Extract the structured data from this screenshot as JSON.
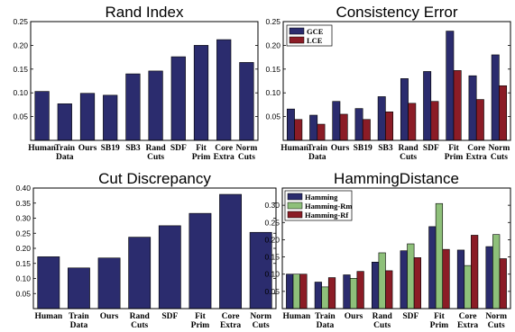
{
  "chart_data": [
    {
      "type": "bar",
      "title": "Rand Index",
      "categories": [
        [
          "Human"
        ],
        [
          "Train",
          "Data"
        ],
        [
          "Ours"
        ],
        [
          "SB19"
        ],
        [
          "SB3"
        ],
        [
          "Rand",
          "Cuts"
        ],
        [
          "SDF"
        ],
        [
          "Fit",
          "Prim"
        ],
        [
          "Core",
          "Extra"
        ],
        [
          "Norm",
          "Cuts"
        ]
      ],
      "series": [
        {
          "values": [
            0.103,
            0.077,
            0.099,
            0.095,
            0.14,
            0.146,
            0.176,
            0.2,
            0.212,
            0.164
          ],
          "color": "#2b2c6e"
        }
      ],
      "ylim": [
        0,
        0.25
      ],
      "yticks": [
        "0.05",
        "0.10",
        "0.15",
        "0.20",
        "0.25"
      ],
      "ytick_values": [
        0.05,
        0.1,
        0.15,
        0.2,
        0.25
      ],
      "grid": false,
      "legend": false
    },
    {
      "type": "bar",
      "title": "Consistency Error",
      "categories": [
        [
          "Human"
        ],
        [
          "Train",
          "Data"
        ],
        [
          "Ours"
        ],
        [
          "SB19"
        ],
        [
          "SB3"
        ],
        [
          "Rand",
          "Cuts"
        ],
        [
          "SDF"
        ],
        [
          "Fit",
          "Prim"
        ],
        [
          "Core",
          "Extra"
        ],
        [
          "Norm",
          "Cuts"
        ]
      ],
      "series": [
        {
          "name": "GCE",
          "values": [
            0.066,
            0.053,
            0.082,
            0.067,
            0.092,
            0.13,
            0.145,
            0.23,
            0.136,
            0.18
          ],
          "color": "#2b2c6e"
        },
        {
          "name": "LCE",
          "values": [
            0.044,
            0.034,
            0.055,
            0.044,
            0.06,
            0.078,
            0.082,
            0.147,
            0.086,
            0.115
          ],
          "color": "#8b1c26"
        }
      ],
      "ylim": [
        0,
        0.25
      ],
      "yticks": [
        "0.05",
        "0.10",
        "0.15",
        "0.20",
        "0.25"
      ],
      "ytick_values": [
        0.05,
        0.1,
        0.15,
        0.2,
        0.25
      ],
      "grid": false,
      "legend": "top-left"
    },
    {
      "type": "bar",
      "title": "Cut  Discrepancy",
      "categories": [
        [
          "Human"
        ],
        [
          "Train",
          "Data"
        ],
        [
          "Ours"
        ],
        [
          "Rand",
          "Cuts"
        ],
        [
          "SDF"
        ],
        [
          "Fit",
          "Prim"
        ],
        [
          "Core",
          "Extra"
        ],
        [
          "Norm",
          "Cuts"
        ]
      ],
      "series": [
        {
          "values": [
            0.172,
            0.135,
            0.168,
            0.237,
            0.275,
            0.316,
            0.379,
            0.253
          ],
          "color": "#2b2c6e"
        }
      ],
      "ylim": [
        0,
        0.4
      ],
      "yticks": [
        "0.05",
        "0.10",
        "0.15",
        "0.20",
        "0.25",
        "0.30",
        "0.35",
        "0.40"
      ],
      "ytick_values": [
        0.05,
        0.1,
        0.15,
        0.2,
        0.25,
        0.3,
        0.35,
        0.4
      ],
      "grid": false,
      "legend": false
    },
    {
      "type": "bar",
      "title": "HammingDistance",
      "categories": [
        [
          "Human"
        ],
        [
          "Train",
          "Data"
        ],
        [
          "Ours"
        ],
        [
          "Rand",
          "Cuts"
        ],
        [
          "SDF"
        ],
        [
          "Fit",
          "Prim"
        ],
        [
          "Core",
          "Extra"
        ],
        [
          "Norm",
          "Cuts"
        ]
      ],
      "series": [
        {
          "name": "Hamming",
          "values": [
            0.1,
            0.077,
            0.098,
            0.135,
            0.168,
            0.238,
            0.17,
            0.18
          ],
          "color": "#2b2c6e"
        },
        {
          "name": "Hamming-Rm",
          "values": [
            0.1,
            0.063,
            0.088,
            0.162,
            0.188,
            0.305,
            0.125,
            0.215
          ],
          "color": "#8ec07a"
        },
        {
          "name": "Hamming-Rf",
          "values": [
            0.1,
            0.09,
            0.108,
            0.11,
            0.148,
            0.172,
            0.213,
            0.145
          ],
          "color": "#8b1c26"
        }
      ],
      "ylim": [
        0,
        0.35
      ],
      "yticks": [
        "0.05",
        "0.10",
        "0.15",
        "0.20",
        "0.25",
        "0.30"
      ],
      "ytick_values": [
        0.05,
        0.1,
        0.15,
        0.2,
        0.25,
        0.3
      ],
      "grid": false,
      "legend": "top-left"
    }
  ]
}
